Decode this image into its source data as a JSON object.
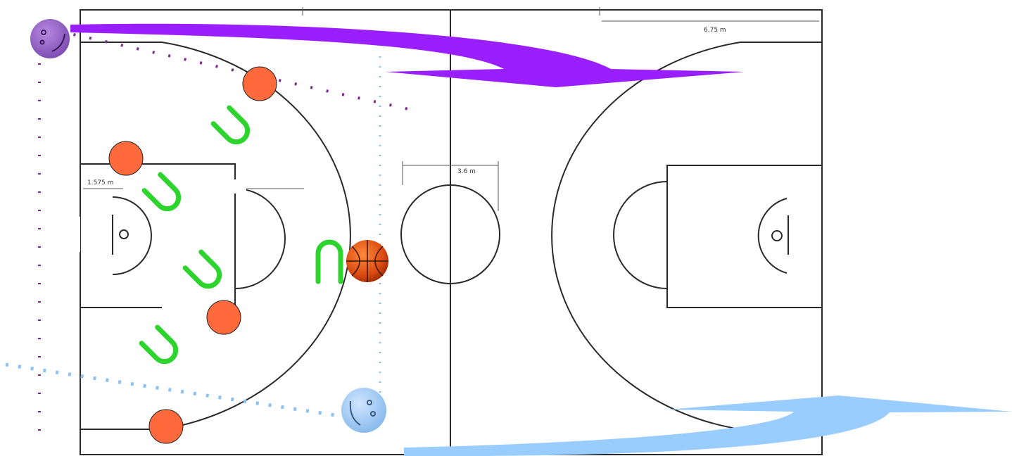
{
  "court": {
    "top_dimension": "",
    "right_three_point_offset": "6.75 m",
    "left_lane_offset": "1.575 m",
    "center_circle_diameter": "3.6 m"
  },
  "colors": {
    "defender": "#ff6a3d",
    "screen": "#33dd33",
    "purple_player": "#9966cc",
    "purple_arrow": "#9a1fff",
    "blue_player": "#99ccff",
    "blue_arrow": "#99ccff",
    "court_line": "#2a2a2a"
  },
  "icons": {
    "purple_player": "smiley-face-icon",
    "blue_player": "smiley-face-icon",
    "ball": "basketball-icon",
    "screen": "u-shaped-screen-icon"
  }
}
